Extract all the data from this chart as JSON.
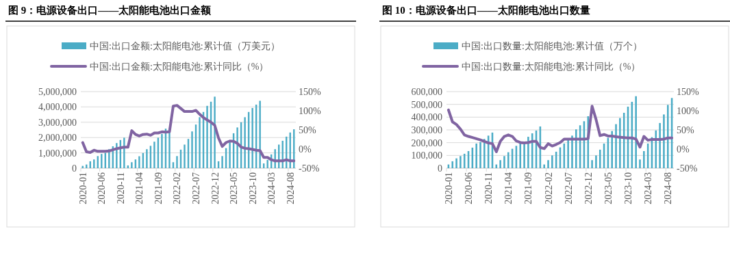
{
  "chart_data": [
    {
      "type": "bar",
      "title": "图 9：电源设备出口——太阳能电池出口金额",
      "legend": "top",
      "grid": "y",
      "categories": [
        "2020-01",
        null,
        null,
        null,
        null,
        "2020-06",
        null,
        null,
        null,
        null,
        "2020-11",
        null,
        null,
        null,
        null,
        "2021-04",
        null,
        null,
        null,
        null,
        "2021-09",
        null,
        null,
        null,
        null,
        "2022-02",
        null,
        null,
        null,
        null,
        "2022-07",
        null,
        null,
        null,
        null,
        "2022-12",
        null,
        null,
        null,
        null,
        "2023-05",
        null,
        null,
        null,
        null,
        "2023-10",
        null,
        null,
        null,
        null,
        "2024-03",
        null,
        null,
        null,
        null,
        "2024-08",
        null
      ],
      "ylim": [
        0,
        5000000
      ],
      "yticks": [
        {
          "value": 0,
          "label": "0"
        },
        {
          "value": 1000000,
          "label": "1,000,000"
        },
        {
          "value": 2000000,
          "label": "2,000,000"
        },
        {
          "value": 3000000,
          "label": "3,000,000"
        },
        {
          "value": 4000000,
          "label": "4,000,000"
        },
        {
          "value": 5000000,
          "label": "5,000,000"
        }
      ],
      "y2lim": [
        -50,
        150
      ],
      "y2ticks": [
        {
          "value": -50,
          "label": "-50%"
        },
        {
          "value": 0,
          "label": "0%"
        },
        {
          "value": 50,
          "label": "50%"
        },
        {
          "value": 100,
          "label": "100%"
        },
        {
          "value": 150,
          "label": "150%"
        }
      ],
      "series": [
        {
          "name": "中国:出口金额:太阳能电池:累计值（万美元）",
          "color": "#4bacc6",
          "values": [
            150000,
            240000,
            450000,
            570000,
            790000,
            930000,
            1000000,
            1240000,
            1430000,
            1640000,
            1840000,
            1990000,
            180000,
            390000,
            570000,
            780000,
            990000,
            1240000,
            1460000,
            1730000,
            1990000,
            2240000,
            2580000,
            2600000,
            390000,
            790000,
            1210000,
            1540000,
            1910000,
            2400000,
            2850000,
            3330000,
            3670000,
            4070000,
            4340000,
            4670000,
            450000,
            790000,
            1310000,
            1690000,
            2280000,
            2660000,
            3000000,
            3330000,
            3670000,
            3930000,
            4150000,
            4400000,
            310000,
            540000,
            900000,
            1240000,
            1540000,
            1790000,
            2060000,
            2330000,
            2540000
          ]
        },
        {
          "name": "中国:出口金额:太阳能电池:累计同比（%）",
          "type": "line",
          "axis": "y2",
          "color": "#8064a2",
          "values": [
            17,
            -7,
            -9,
            -3,
            -6,
            -6,
            -6,
            -5,
            -2,
            1,
            3,
            5,
            5,
            48,
            38,
            34,
            38,
            39,
            36,
            42,
            42,
            45,
            44,
            45,
            112,
            114,
            106,
            98,
            98,
            98,
            101,
            91,
            82,
            76,
            70,
            62,
            29,
            7,
            17,
            21,
            20,
            15,
            5,
            2,
            1,
            -1,
            -3,
            -4,
            -22,
            -22,
            -28,
            -31,
            -31,
            -31,
            -28,
            -31,
            -31
          ]
        }
      ]
    },
    {
      "type": "bar",
      "title": "图 10：电源设备出口——太阳能电池出口数量",
      "legend": "top",
      "grid": "y",
      "categories": [
        "2020-01",
        null,
        null,
        null,
        null,
        "2020-06",
        null,
        null,
        null,
        null,
        "2020-11",
        null,
        null,
        null,
        null,
        "2021-04",
        null,
        null,
        null,
        null,
        "2021-09",
        null,
        null,
        null,
        null,
        "2022-02",
        null,
        null,
        null,
        null,
        "2022-07",
        null,
        null,
        null,
        null,
        "2022-12",
        null,
        null,
        null,
        null,
        "2023-05",
        null,
        null,
        null,
        null,
        "2023-10",
        null,
        null,
        null,
        null,
        "2024-03",
        null,
        null,
        null,
        null,
        "2024-08",
        null
      ],
      "ylim": [
        0,
        600000
      ],
      "yticks": [
        {
          "value": 0,
          "label": "0"
        },
        {
          "value": 100000,
          "label": "100,000"
        },
        {
          "value": 200000,
          "label": "200,000"
        },
        {
          "value": 300000,
          "label": "300,000"
        },
        {
          "value": 400000,
          "label": "400,000"
        },
        {
          "value": 500000,
          "label": "500,000"
        },
        {
          "value": 600000,
          "label": "600,000"
        }
      ],
      "y2lim": [
        -50,
        150
      ],
      "y2ticks": [
        {
          "value": -50,
          "label": "-50%"
        },
        {
          "value": 0,
          "label": "0%"
        },
        {
          "value": 50,
          "label": "50%"
        },
        {
          "value": 100,
          "label": "100%"
        },
        {
          "value": 150,
          "label": "150%"
        }
      ],
      "series": [
        {
          "name": "中国:出口数量:太阳能电池:累计值（万个）",
          "color": "#4bacc6",
          "values": [
            29000,
            54000,
            77000,
            95000,
            113000,
            134000,
            161000,
            193000,
            205000,
            229000,
            255000,
            279000,
            29000,
            63000,
            95000,
            125000,
            152000,
            175000,
            193000,
            207000,
            246000,
            273000,
            295000,
            327000,
            29000,
            63000,
            100000,
            129000,
            163000,
            193000,
            223000,
            255000,
            304000,
            336000,
            368000,
            407000,
            63000,
            100000,
            145000,
            193000,
            238000,
            291000,
            345000,
            393000,
            434000,
            482000,
            520000,
            564000,
            68000,
            134000,
            193000,
            243000,
            296000,
            354000,
            421000,
            496000,
            550000
          ]
        },
        {
          "name": "中国:出口数量:太阳能电池:累计同比（%）",
          "type": "line",
          "axis": "y2",
          "color": "#8064a2",
          "values": [
            102,
            71,
            64,
            52,
            37,
            33,
            30,
            27,
            24,
            20,
            16,
            14,
            -7,
            20,
            33,
            37,
            33,
            21,
            17,
            16,
            17,
            20,
            20,
            4,
            1,
            14,
            8,
            12,
            17,
            26,
            26,
            26,
            26,
            26,
            26,
            27,
            112,
            77,
            35,
            38,
            34,
            34,
            32,
            31,
            30,
            29,
            29,
            26,
            5,
            33,
            23,
            25,
            25,
            25,
            26,
            29,
            29
          ]
        }
      ]
    }
  ]
}
